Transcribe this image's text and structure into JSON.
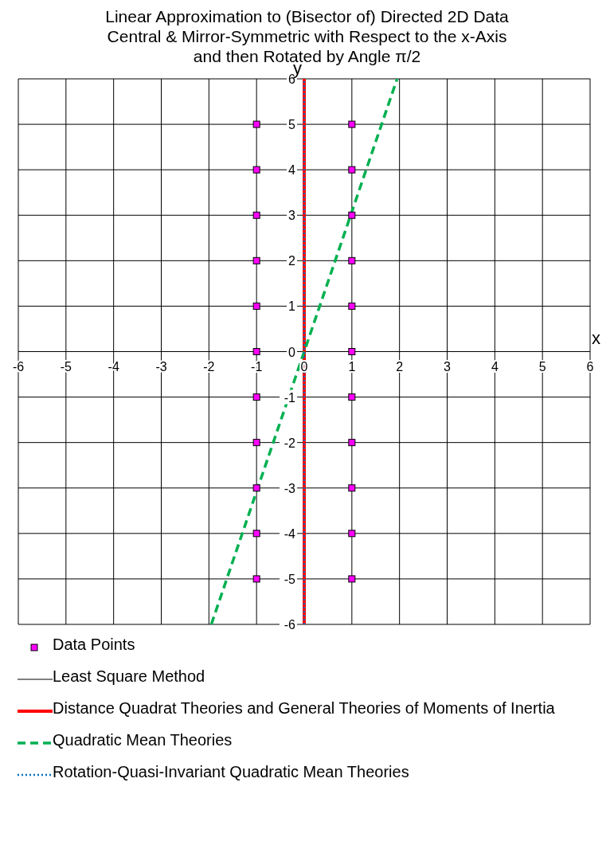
{
  "chart_data": {
    "type": "line",
    "title": "Linear Approximation to (Bisector of) Directed 2D Data\nCentral & Mirror-Symmetric with Respect to the x-Axis\nand then Rotated by Angle π/2",
    "xlabel": "x",
    "ylabel": "y",
    "xlim": [
      -6,
      6
    ],
    "ylim": [
      -6,
      6
    ],
    "xticks": [
      -6,
      -5,
      -4,
      -3,
      -2,
      -1,
      0,
      1,
      2,
      3,
      4,
      5,
      6
    ],
    "yticks": [
      -6,
      -5,
      -4,
      -3,
      -2,
      -1,
      0,
      1,
      2,
      3,
      4,
      5,
      6
    ],
    "grid": true,
    "legend": "bottom",
    "series": [
      {
        "name": "Data Points",
        "type": "scatter",
        "color": "#ff00ff",
        "marker": "square",
        "x": [
          -1,
          -1,
          -1,
          -1,
          -1,
          -1,
          -1,
          -1,
          -1,
          -1,
          -1,
          1,
          1,
          1,
          1,
          1,
          1,
          1,
          1,
          1,
          1,
          1
        ],
        "values": [
          -5,
          -4,
          -3,
          -2,
          -1,
          0,
          1,
          2,
          3,
          4,
          5,
          -5,
          -4,
          -3,
          -2,
          -1,
          0,
          1,
          2,
          3,
          4,
          5
        ]
      },
      {
        "name": "Least Square Method",
        "color": "#000000",
        "line_style": "solid",
        "x": [
          -6,
          6
        ],
        "values": [
          0,
          0
        ]
      },
      {
        "name": "Distance Quadrat Theories and General Theories of Moments of Inertia",
        "color": "#ff0000",
        "line_style": "solid",
        "x": [
          0,
          0
        ],
        "values": [
          -6,
          6
        ]
      },
      {
        "name": "Quadratic Mean Theories",
        "color": "#00b050",
        "line_style": "dashed",
        "x": [
          -1.95,
          1.95
        ],
        "values": [
          -6,
          6
        ]
      },
      {
        "name": "Rotation-Quasi-Invariant Quadratic Mean Theories",
        "color": "#0070c0",
        "line_style": "dotted",
        "x": [
          0,
          0
        ],
        "values": [
          -6,
          6
        ]
      }
    ]
  }
}
